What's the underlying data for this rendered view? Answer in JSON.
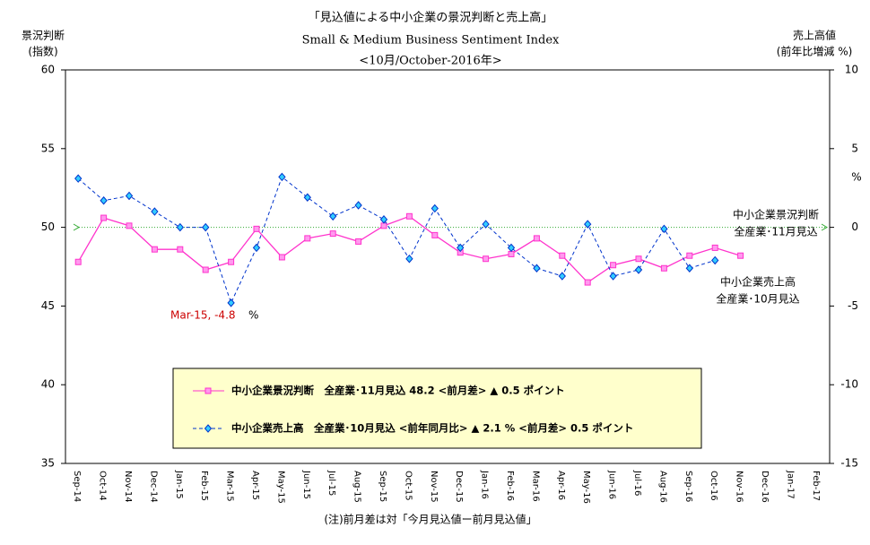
{
  "chart_data": {
    "type": "line",
    "title": "「見込値による中小企業の景況判断と売上高」",
    "subtitle": "Small & Medium Business Sentiment Index",
    "subtitle2": "<10月/October-2016年>",
    "y_label": [
      "景況判断",
      "(指数)"
    ],
    "y2_label": [
      "売上高値",
      "(前年比増減 %)"
    ],
    "y2_unit": "%",
    "categories": [
      "Sep-14",
      "Oct-14",
      "Nov-14",
      "Dec-14",
      "Jan-15",
      "Feb-15",
      "Mar-15",
      "Apr-15",
      "May-15",
      "Jun-15",
      "Jul-15",
      "Aug-15",
      "Sep-15",
      "Oct-15",
      "Nov-15",
      "Dec-15",
      "Jan-16",
      "Feb-16",
      "Mar-16",
      "Apr-16",
      "May-16",
      "Jun-16",
      "Jul-16",
      "Aug-16",
      "Sep-16",
      "Oct-16",
      "Nov-16",
      "Dec-16",
      "Jan-17",
      "Feb-17"
    ],
    "series": [
      {
        "name": "中小企業景況判断　全産業･11月見込 48.2 <前月差> ▲ 0.5 ポイント",
        "color": "#ff33cc",
        "axis": "y",
        "values": [
          47.8,
          50.6,
          50.1,
          48.6,
          48.6,
          47.3,
          47.8,
          49.9,
          48.1,
          49.3,
          49.6,
          49.1,
          50.1,
          50.7,
          49.5,
          48.4,
          48.0,
          48.3,
          49.3,
          48.2,
          46.5,
          47.6,
          48.0,
          47.4,
          48.2,
          48.7,
          48.2,
          null,
          null,
          null
        ]
      },
      {
        "name": "中小企業売上高　全産業･10月見込 <前年同月比> ▲ 2.1 % <前月差> 0.5 ポイント",
        "color": "#0033cc",
        "axis": "y2",
        "values": [
          3.1,
          1.7,
          2.0,
          1.0,
          0.0,
          0.0,
          -4.8,
          -1.3,
          3.2,
          1.9,
          0.7,
          1.4,
          0.5,
          -2.0,
          1.2,
          -1.3,
          0.2,
          -1.3,
          -2.6,
          -3.1,
          0.2,
          -3.1,
          -2.7,
          -0.1,
          -2.6,
          -2.1,
          null,
          null,
          null,
          null
        ]
      }
    ],
    "ylim": [
      35,
      60
    ],
    "yticks": [
      35,
      40,
      45,
      50,
      55,
      60
    ],
    "y2lim": [
      -15,
      10
    ],
    "y2ticks": [
      -15,
      -10,
      -5,
      0,
      5,
      10
    ],
    "annotations": [
      "中小企業景況判断",
      "全産業･11月見込",
      "中小企業売上高",
      "全産業･10月見込",
      "Mar-15, -4.8",
      "%"
    ],
    "footnote": "(注)前月差は対「今月見込値ー前月見込値」"
  }
}
